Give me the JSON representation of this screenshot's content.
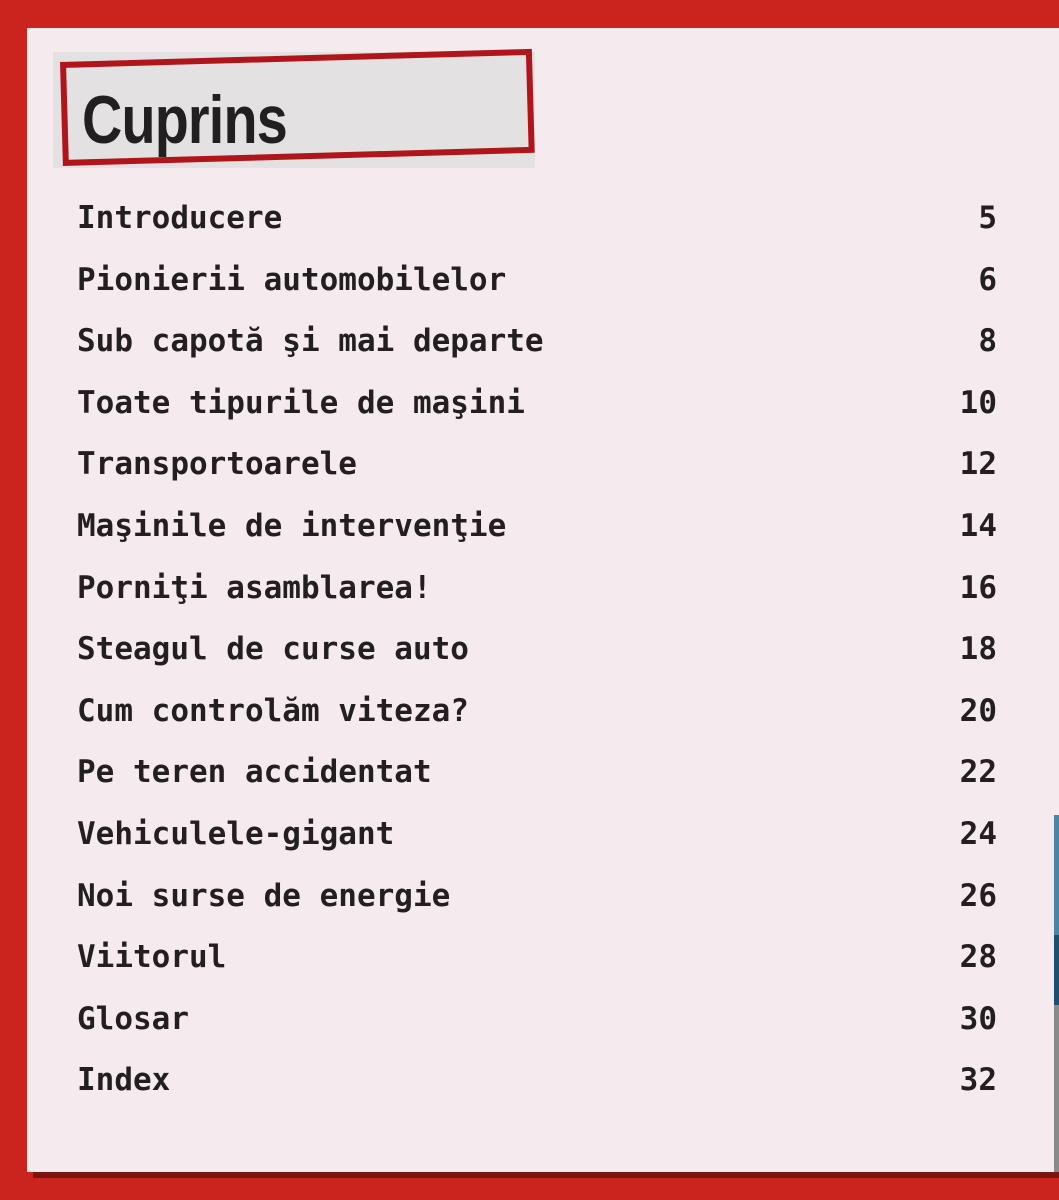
{
  "title": "Cuprins",
  "entries": [
    {
      "label": "Introducere",
      "page": "5"
    },
    {
      "label": "Pionierii automobilelor",
      "page": "6"
    },
    {
      "label": "Sub capotă şi mai departe",
      "page": "8"
    },
    {
      "label": "Toate tipurile de maşini",
      "page": "10"
    },
    {
      "label": "Transportoarele",
      "page": "12"
    },
    {
      "label": "Maşinile de intervenţie",
      "page": "14"
    },
    {
      "label": "Porniţi asamblarea!",
      "page": "16"
    },
    {
      "label": "Steagul de curse auto",
      "page": "18"
    },
    {
      "label": "Cum controlăm viteza?",
      "page": "20"
    },
    {
      "label": "Pe teren accidentat",
      "page": "22"
    },
    {
      "label": "Vehiculele-gigant",
      "page": "24"
    },
    {
      "label": "Noi surse de energie",
      "page": "26"
    },
    {
      "label": "Viitorul",
      "page": "28"
    },
    {
      "label": "Glosar",
      "page": "30"
    },
    {
      "label": "Index",
      "page": "32"
    }
  ],
  "colors": {
    "border": "#cb241e",
    "panel": "#f5ebee",
    "title_frame": "#b0151b",
    "text": "#231f20"
  }
}
